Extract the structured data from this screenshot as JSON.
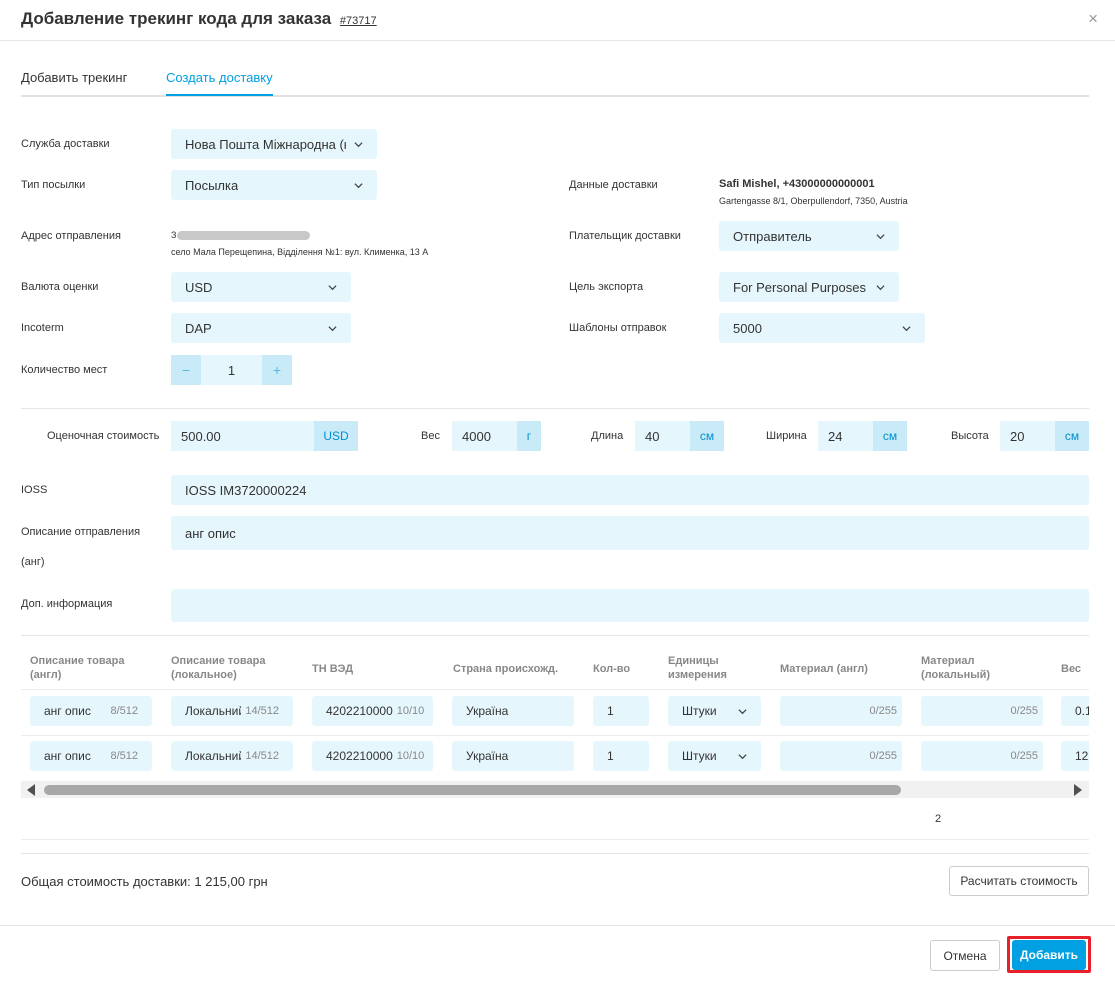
{
  "header": {
    "title": "Добавление трекинг кода для заказа",
    "order_number": "#73717",
    "close": "×"
  },
  "tabs": [
    {
      "label": "Добавить трекинг"
    },
    {
      "label": "Создать доставку"
    }
  ],
  "form": {
    "service_label": "Служба доставки",
    "service_value": "Нова Пошта Міжнародна (кат",
    "parcel_type_label": "Тип посылки",
    "parcel_type_value": "Посылка",
    "sender_address_label": "Адрес отправления",
    "sender_address_line1": "З",
    "sender_address_line2": "село Мала Перещепина, Відділення №1: вул. Клименка, 13 А",
    "currency_label": "Валюта оценки",
    "currency_value": "USD",
    "incoterm_label": "Incoterm",
    "incoterm_value": "DAP",
    "places_label": "Количество мест",
    "places_value": "1",
    "places_minus": "−",
    "places_plus": "+",
    "delivery_data_label": "Данные доставки",
    "delivery_name": "Safi Mishel, +43000000000001",
    "delivery_address": "Gartengasse 8/1, Oberpullendorf, 7350, Austria",
    "payer_label": "Плательщик доставки",
    "payer_value": "Отправитель",
    "export_goal_label": "Цель экспорта",
    "export_goal_value": "For Personal Purposes",
    "templates_label": "Шаблоны отправок",
    "templates_value": "5000"
  },
  "measurements": {
    "value_label": "Оценочная стоимость",
    "value": "500.00",
    "value_unit": "USD",
    "weight_label": "Вес",
    "weight": "4000",
    "weight_unit": "г",
    "length_label": "Длина",
    "length": "40",
    "length_unit": "см",
    "width_label": "Ширина",
    "width": "24",
    "width_unit": "см",
    "height_label": "Высота",
    "height": "20",
    "height_unit": "см"
  },
  "extra": {
    "ioss_label": "IOSS",
    "ioss_value": "IOSS IM3720000224",
    "description_label_1": "Описание отправления",
    "description_label_2": "(анг)",
    "description_value": "анг опис",
    "additional_label": "Доп. информация",
    "additional_value": ""
  },
  "table": {
    "headers": {
      "desc_en_1": "Описание товара",
      "desc_en_2": "(англ)",
      "desc_local_1": "Описание товара",
      "desc_local_2": "(локальное)",
      "hs": "ТН ВЭД",
      "country": "Страна происхожд.",
      "qty": "Кол-во",
      "units_1": "Единицы",
      "units_2": "измерения",
      "material_en": "Материал (англ)",
      "material_local_1": "Материал",
      "material_local_2": "(локальный)",
      "weight": "Вес"
    },
    "rows": [
      {
        "desc_en": "анг опис",
        "desc_en_count": "8/512",
        "desc_local": "Локальний опис",
        "desc_local_count": "14/512",
        "hs": "4202210000",
        "hs_count": "10/10",
        "country": "Україна",
        "qty": "1",
        "units": "Штуки",
        "material_en_count": "0/255",
        "material_local_count": "0/255",
        "weight": "0.1"
      },
      {
        "desc_en": "анг опис",
        "desc_en_count": "8/512",
        "desc_local": "Локальний опис",
        "desc_local_count": "14/512",
        "hs": "4202210000",
        "hs_count": "10/10",
        "country": "Україна",
        "qty": "1",
        "units": "Штуки",
        "material_en_count": "0/255",
        "material_local_count": "0/255",
        "weight": "12"
      }
    ],
    "footer_value": "2"
  },
  "footer": {
    "total_label": "Общая стоимость доставки: 1 215,00 грн",
    "calculate_button": "Расчитать стоимость",
    "cancel_button": "Отмена",
    "add_button": "Добавить"
  },
  "colors": {
    "accent": "#00a0e3",
    "field_bg": "#e6f6fd",
    "suffix_bg": "#c9ebf8",
    "highlight": "#e8202a"
  }
}
